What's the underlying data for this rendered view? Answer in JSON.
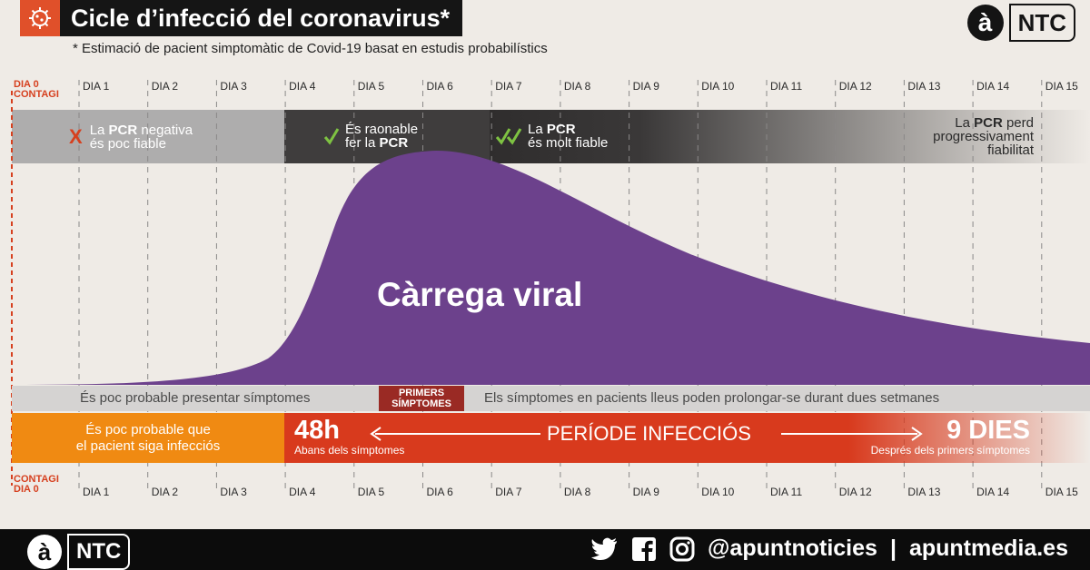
{
  "header": {
    "title": "Cicle d’infecció del coronavirus*",
    "subtitle": "* Estimació de pacient simptomàtic de Covid-19 basat en estudis probabilístics",
    "logo_letter": "à",
    "logo_name": "NTC"
  },
  "days": {
    "day0_line1": "DIA 0",
    "day0_line2": "CONTAGI",
    "labels": [
      "DIA 1",
      "DIA 2",
      "DIA 3",
      "DIA 4",
      "DIA 5",
      "DIA 6",
      "DIA 7",
      "DIA 8",
      "DIA 9",
      "DIA 10",
      "DIA 11",
      "DIA 12",
      "DIA 13",
      "DIA 14",
      "DIA 15"
    ]
  },
  "pcr": {
    "negative_mark": "X",
    "negative_pre": "La ",
    "negative_bold": "PCR",
    "negative_mid": " negativa",
    "negative_line2": "és poc fiable",
    "reasonable_line1": "És raonable",
    "reasonable_pre": "fer la ",
    "reasonable_bold": "PCR",
    "reliable_pre": "La ",
    "reliable_bold": "PCR",
    "reliable_line2": "és molt fiable",
    "loses_pre": "La ",
    "loses_bold": "PCR",
    "loses_mid": " perd",
    "loses_line2": "progressivament",
    "loses_line3": "fiabilitat",
    "colors": [
      "#aeadad",
      "#3f3d3d",
      "#2f2d2d"
    ]
  },
  "viral_load": {
    "label": "Càrrega viral",
    "color": "#6c418c"
  },
  "symptoms": {
    "before": "És poc probable presentar símptomes",
    "first_line1": "PRIMERS",
    "first_line2": "SÍMPTOMES",
    "after": "Els símptomes en pacients lleus poden prolongar-se durant dues setmanes"
  },
  "infection": {
    "unlikely_line1": "És poc probable que",
    "unlikely_line2": "el pacient siga infecciós",
    "before_value": "48h",
    "before_caption": "Abans dels símptomes",
    "period_label": "PERÍODE INFECCIÓS",
    "after_value": "9 DIES",
    "after_caption": "Després dels primers símptomes"
  },
  "footer": {
    "logo_letter": "à",
    "logo_name": "NTC",
    "handle": "@apuntnoticies",
    "separator": "|",
    "site": "apuntmedia.es",
    "icons": [
      "twitter-icon",
      "facebook-icon",
      "instagram-icon"
    ]
  }
}
